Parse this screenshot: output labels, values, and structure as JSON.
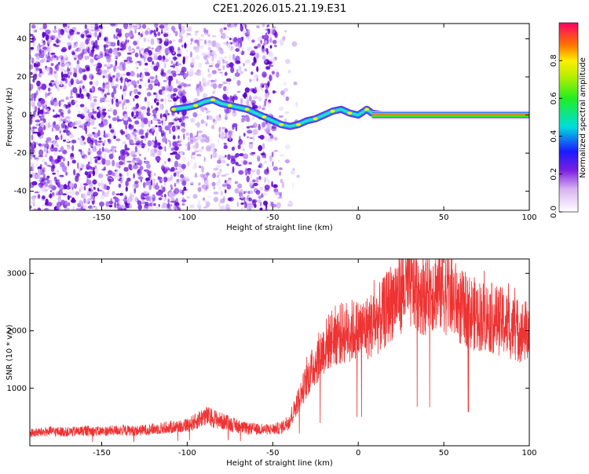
{
  "title": "C2E1.2026.015.21.19.E31",
  "chart_data": [
    {
      "type": "heatmap",
      "xlabel": "Height of straight line (km)",
      "ylabel": "Frequency (Hz)",
      "xlim": [
        -192,
        100
      ],
      "ylim": [
        -50,
        48
      ],
      "xticks": [
        -150,
        -100,
        -50,
        0,
        50,
        100
      ],
      "yticks": [
        -40,
        -20,
        0,
        20,
        40
      ],
      "ridge": {
        "x": [
          -108,
          -100,
          -95,
          -90,
          -85,
          -80,
          -75,
          -70,
          -65,
          -60,
          -55,
          -50,
          -45,
          -40,
          -35,
          -30,
          -25,
          -20,
          -15,
          -10,
          -5,
          0,
          5,
          8,
          15,
          30,
          50,
          70,
          90,
          100
        ],
        "freq": [
          3,
          4,
          5,
          7,
          8,
          6,
          5,
          4,
          3,
          1,
          -1,
          -3,
          -5,
          -6,
          -5,
          -3,
          -2,
          0,
          2,
          3,
          1,
          0,
          3,
          1,
          0,
          0,
          0,
          0,
          0,
          0
        ]
      }
    },
    {
      "type": "colorbar",
      "label": "Normalized spectral amplitude",
      "range": [
        0,
        1
      ],
      "ticks": [
        "0.0",
        "0.2",
        "0.4",
        "0.6",
        "0.8"
      ]
    },
    {
      "type": "line",
      "xlabel": "Height of straight line (km)",
      "ylabel": "SNR (10 * v/v)",
      "xlim": [
        -192,
        100
      ],
      "ylim": [
        0,
        3250
      ],
      "xticks": [
        -150,
        -100,
        -50,
        0,
        50,
        100
      ],
      "yticks": [
        1000,
        2000,
        3000
      ],
      "color": "#ee3333",
      "series": [
        {
          "name": "SNR",
          "x": [
            -192,
            -180,
            -170,
            -160,
            -150,
            -140,
            -130,
            -120,
            -110,
            -100,
            -95,
            -90,
            -85,
            -80,
            -75,
            -70,
            -65,
            -60,
            -55,
            -50,
            -45,
            -40,
            -35,
            -30,
            -25,
            -20,
            -15,
            -10,
            -5,
            0,
            5,
            10,
            15,
            20,
            25,
            30,
            35,
            40,
            45,
            50,
            55,
            60,
            65,
            70,
            75,
            80,
            85,
            90,
            95,
            100
          ],
          "y": [
            220,
            250,
            240,
            260,
            250,
            270,
            260,
            290,
            320,
            360,
            420,
            520,
            480,
            430,
            380,
            330,
            300,
            290,
            280,
            290,
            310,
            450,
            800,
            1150,
            1450,
            1700,
            1900,
            1950,
            2000,
            2000,
            2050,
            2150,
            2300,
            2550,
            2700,
            2780,
            2700,
            2650,
            2750,
            2700,
            2580,
            2400,
            2330,
            2270,
            2250,
            2200,
            2150,
            2050,
            2000,
            1980
          ]
        }
      ]
    }
  ]
}
